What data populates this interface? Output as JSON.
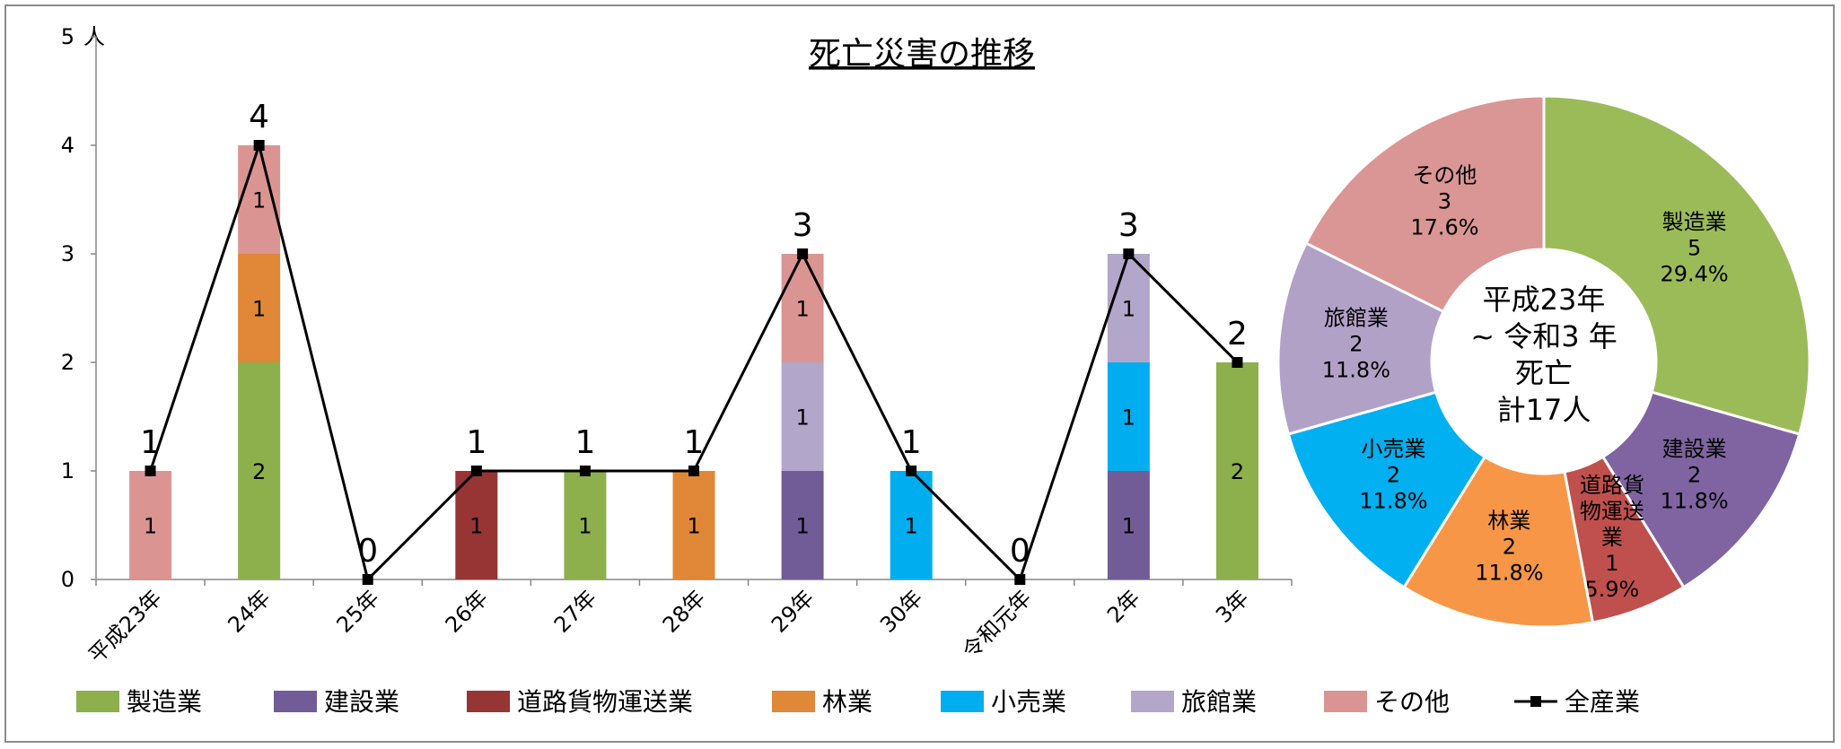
{
  "chart_data": {
    "type": "bar",
    "title": "死亡災害の推移",
    "y_unit": "人",
    "ylim": [
      0,
      5
    ],
    "yticks": [
      "0",
      "1",
      "2",
      "3",
      "4",
      "5"
    ],
    "categories": [
      "平成23年",
      "24年",
      "25年",
      "26年",
      "27年",
      "28年",
      "29年",
      "30年",
      "令和元年",
      "2年",
      "3年"
    ],
    "series": [
      {
        "name": "製造業",
        "color": "#8db04c",
        "values": [
          0,
          2,
          0,
          0,
          1,
          0,
          0,
          0,
          0,
          0,
          2
        ]
      },
      {
        "name": "建設業",
        "color": "#725c97",
        "values": [
          0,
          0,
          0,
          0,
          0,
          0,
          1,
          0,
          0,
          1,
          0
        ]
      },
      {
        "name": "道路貨物運送業",
        "color": "#963534",
        "values": [
          0,
          0,
          0,
          1,
          0,
          0,
          0,
          0,
          0,
          0,
          0
        ]
      },
      {
        "name": "林業",
        "color": "#e08838",
        "values": [
          0,
          1,
          0,
          0,
          0,
          1,
          0,
          0,
          0,
          0,
          0
        ]
      },
      {
        "name": "小売業",
        "color": "#00aeef",
        "values": [
          0,
          0,
          0,
          0,
          0,
          0,
          0,
          1,
          0,
          1,
          0
        ]
      },
      {
        "name": "旅館業",
        "color": "#b3a6cb",
        "values": [
          0,
          0,
          0,
          0,
          0,
          0,
          1,
          0,
          0,
          1,
          0
        ]
      },
      {
        "name": "その他",
        "color": "#da9593",
        "values": [
          1,
          1,
          0,
          0,
          0,
          0,
          1,
          0,
          0,
          0,
          0
        ]
      }
    ],
    "line": {
      "name": "全産業",
      "color": "#000000",
      "values": [
        1,
        4,
        0,
        1,
        1,
        1,
        3,
        1,
        0,
        3,
        2
      ]
    },
    "pie": {
      "type": "pie",
      "center_text": [
        "平成23年",
        "~ 令和3 年",
        "死亡",
        "計17人"
      ],
      "slices": [
        {
          "name": "製造業",
          "value": 5,
          "percent": "29.4%",
          "color": "#9bbb59"
        },
        {
          "name": "建設業",
          "value": 2,
          "percent": "11.8%",
          "color": "#8064a2"
        },
        {
          "name": "道路貨物運送業",
          "label_lines": [
            "道路貨",
            "物運送",
            "業"
          ],
          "value": 1,
          "percent": "5.9%",
          "color": "#c0504d"
        },
        {
          "name": "林業",
          "value": 2,
          "percent": "11.8%",
          "color": "#f79646"
        },
        {
          "name": "小売業",
          "value": 2,
          "percent": "11.8%",
          "color": "#00b0f0"
        },
        {
          "name": "旅館業",
          "value": 2,
          "percent": "11.8%",
          "color": "#b2a1c7"
        },
        {
          "name": "その他",
          "value": 3,
          "percent": "17.6%",
          "color": "#d99694"
        }
      ]
    },
    "legend": [
      "製造業",
      "建設業",
      "道路貨物運送業",
      "林業",
      "小売業",
      "旅館業",
      "その他",
      "全産業"
    ],
    "legend_position": "bottom"
  }
}
